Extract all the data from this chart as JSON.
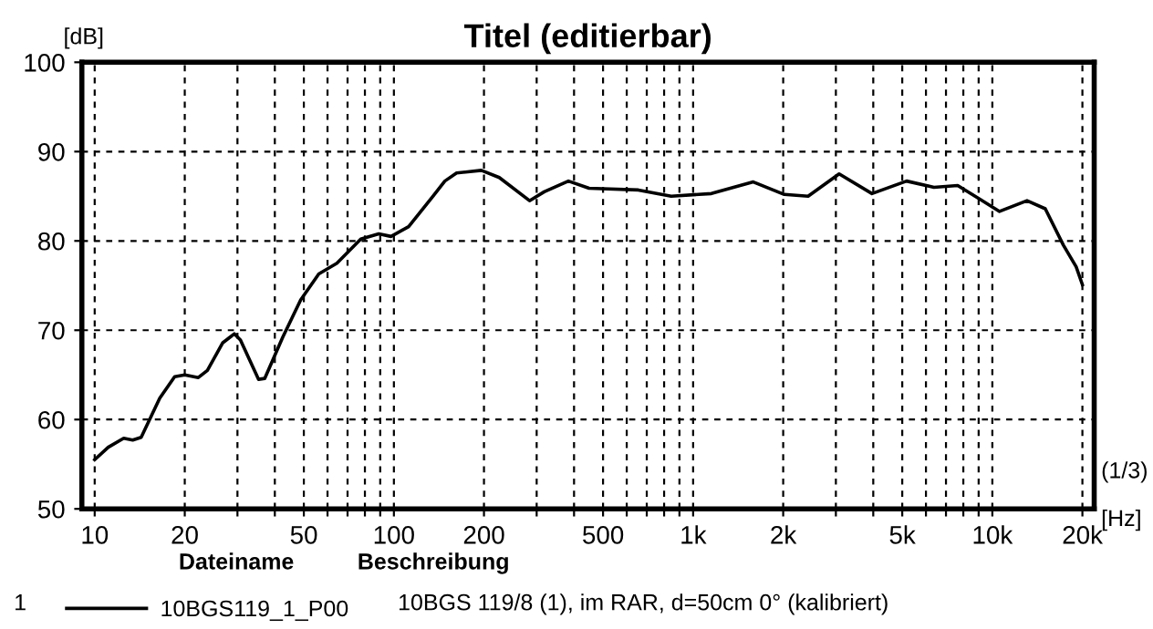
{
  "chart_data": {
    "type": "line",
    "title": "Titel (editierbar)",
    "xlabel": "[Hz]",
    "ylabel": "[dB]",
    "annotations": [
      "(1/3)",
      "Dateiname",
      "Beschreibung",
      "1",
      "10BGS 119/8 (1), im RAR, d=50cm 0° (kalibriert)"
    ],
    "log": "x",
    "xlim": [
      9.06,
      21900
    ],
    "ylim": [
      50,
      100
    ],
    "xticks": [
      10,
      20,
      {
        "value": 30,
        "label": null
      },
      {
        "value": 40,
        "label": null
      },
      50,
      {
        "value": 60,
        "label": null
      },
      {
        "value": 70,
        "label": null
      },
      {
        "value": 80,
        "label": null
      },
      {
        "value": 90,
        "label": null
      },
      100,
      200,
      {
        "value": 300,
        "label": null
      },
      {
        "value": 400,
        "label": null
      },
      500,
      {
        "value": 600,
        "label": null
      },
      {
        "value": 700,
        "label": null
      },
      {
        "value": 800,
        "label": null
      },
      {
        "value": 900,
        "label": null
      },
      {
        "value": 1000,
        "label": "1k"
      },
      {
        "value": 2000,
        "label": "2k"
      },
      {
        "value": 3000,
        "label": null
      },
      {
        "value": 4000,
        "label": null
      },
      {
        "value": 5000,
        "label": "5k"
      },
      {
        "value": 6000,
        "label": null
      },
      {
        "value": 7000,
        "label": null
      },
      {
        "value": 8000,
        "label": null
      },
      {
        "value": 9000,
        "label": null
      },
      {
        "value": 10000,
        "label": "10k"
      },
      {
        "value": 20000,
        "label": "20k"
      }
    ],
    "yticks": [
      50,
      60,
      70,
      80,
      90,
      100
    ],
    "grid": true,
    "line_style": "solid",
    "marker": "none",
    "legend": "bottom",
    "series": [
      {
        "name": "10BGS119_1_P00",
        "color": "#000000",
        "x": [
          10,
          11.1,
          12.5,
          13.4,
          14.3,
          16.5,
          18.5,
          20,
          22.2,
          23.8,
          26.8,
          29.3,
          30.7,
          35.3,
          37,
          42.5,
          48.8,
          56.1,
          64.5,
          77.5,
          89,
          97.8,
          112,
          135,
          148,
          162,
          196,
          225,
          284,
          318,
          383,
          449,
          656,
          845,
          1151,
          1589,
          2018,
          2423,
          3076,
          3960,
          5170,
          6380,
          7660,
          9060,
          10570,
          13060,
          15030,
          17290,
          19060,
          20000
        ],
        "values": [
          55.5,
          56.9,
          57.9,
          57.7,
          58.0,
          62.4,
          64.8,
          65.0,
          64.7,
          65.5,
          68.6,
          69.6,
          68.9,
          64.5,
          64.6,
          69.2,
          73.4,
          76.3,
          77.5,
          80.2,
          80.8,
          80.5,
          81.6,
          85.0,
          86.7,
          87.6,
          87.9,
          87.1,
          84.5,
          85.5,
          86.7,
          85.9,
          85.7,
          85.0,
          85.3,
          86.6,
          85.2,
          85.0,
          87.5,
          85.3,
          86.7,
          86.0,
          86.2,
          84.7,
          83.3,
          84.5,
          83.6,
          79.5,
          77.1,
          75.1
        ]
      }
    ]
  }
}
